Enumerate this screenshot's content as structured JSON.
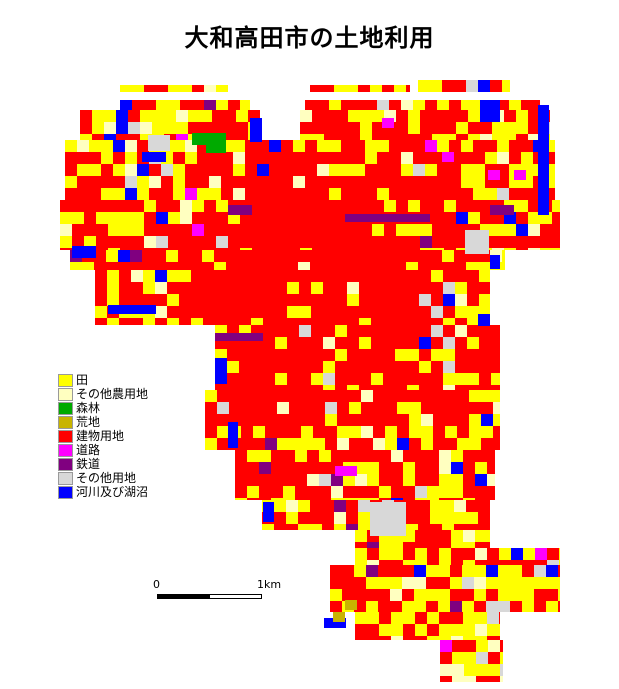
{
  "title": "大和高田市の土地利用",
  "legend": [
    {
      "label": "田",
      "color": "#ffff00"
    },
    {
      "label": "その他農用地",
      "color": "#ffffc0"
    },
    {
      "label": "森林",
      "color": "#00aa00"
    },
    {
      "label": "荒地",
      "color": "#c8b400"
    },
    {
      "label": "建物用地",
      "color": "#ff0000"
    },
    {
      "label": "道路",
      "color": "#ff00ff"
    },
    {
      "label": "鉄道",
      "color": "#800080"
    },
    {
      "label": "その他用地",
      "color": "#d8d8d8"
    },
    {
      "label": "河川及び湖沼",
      "color": "#0000ff"
    }
  ],
  "scale": {
    "start_label": "0",
    "end_label": "1km"
  }
}
